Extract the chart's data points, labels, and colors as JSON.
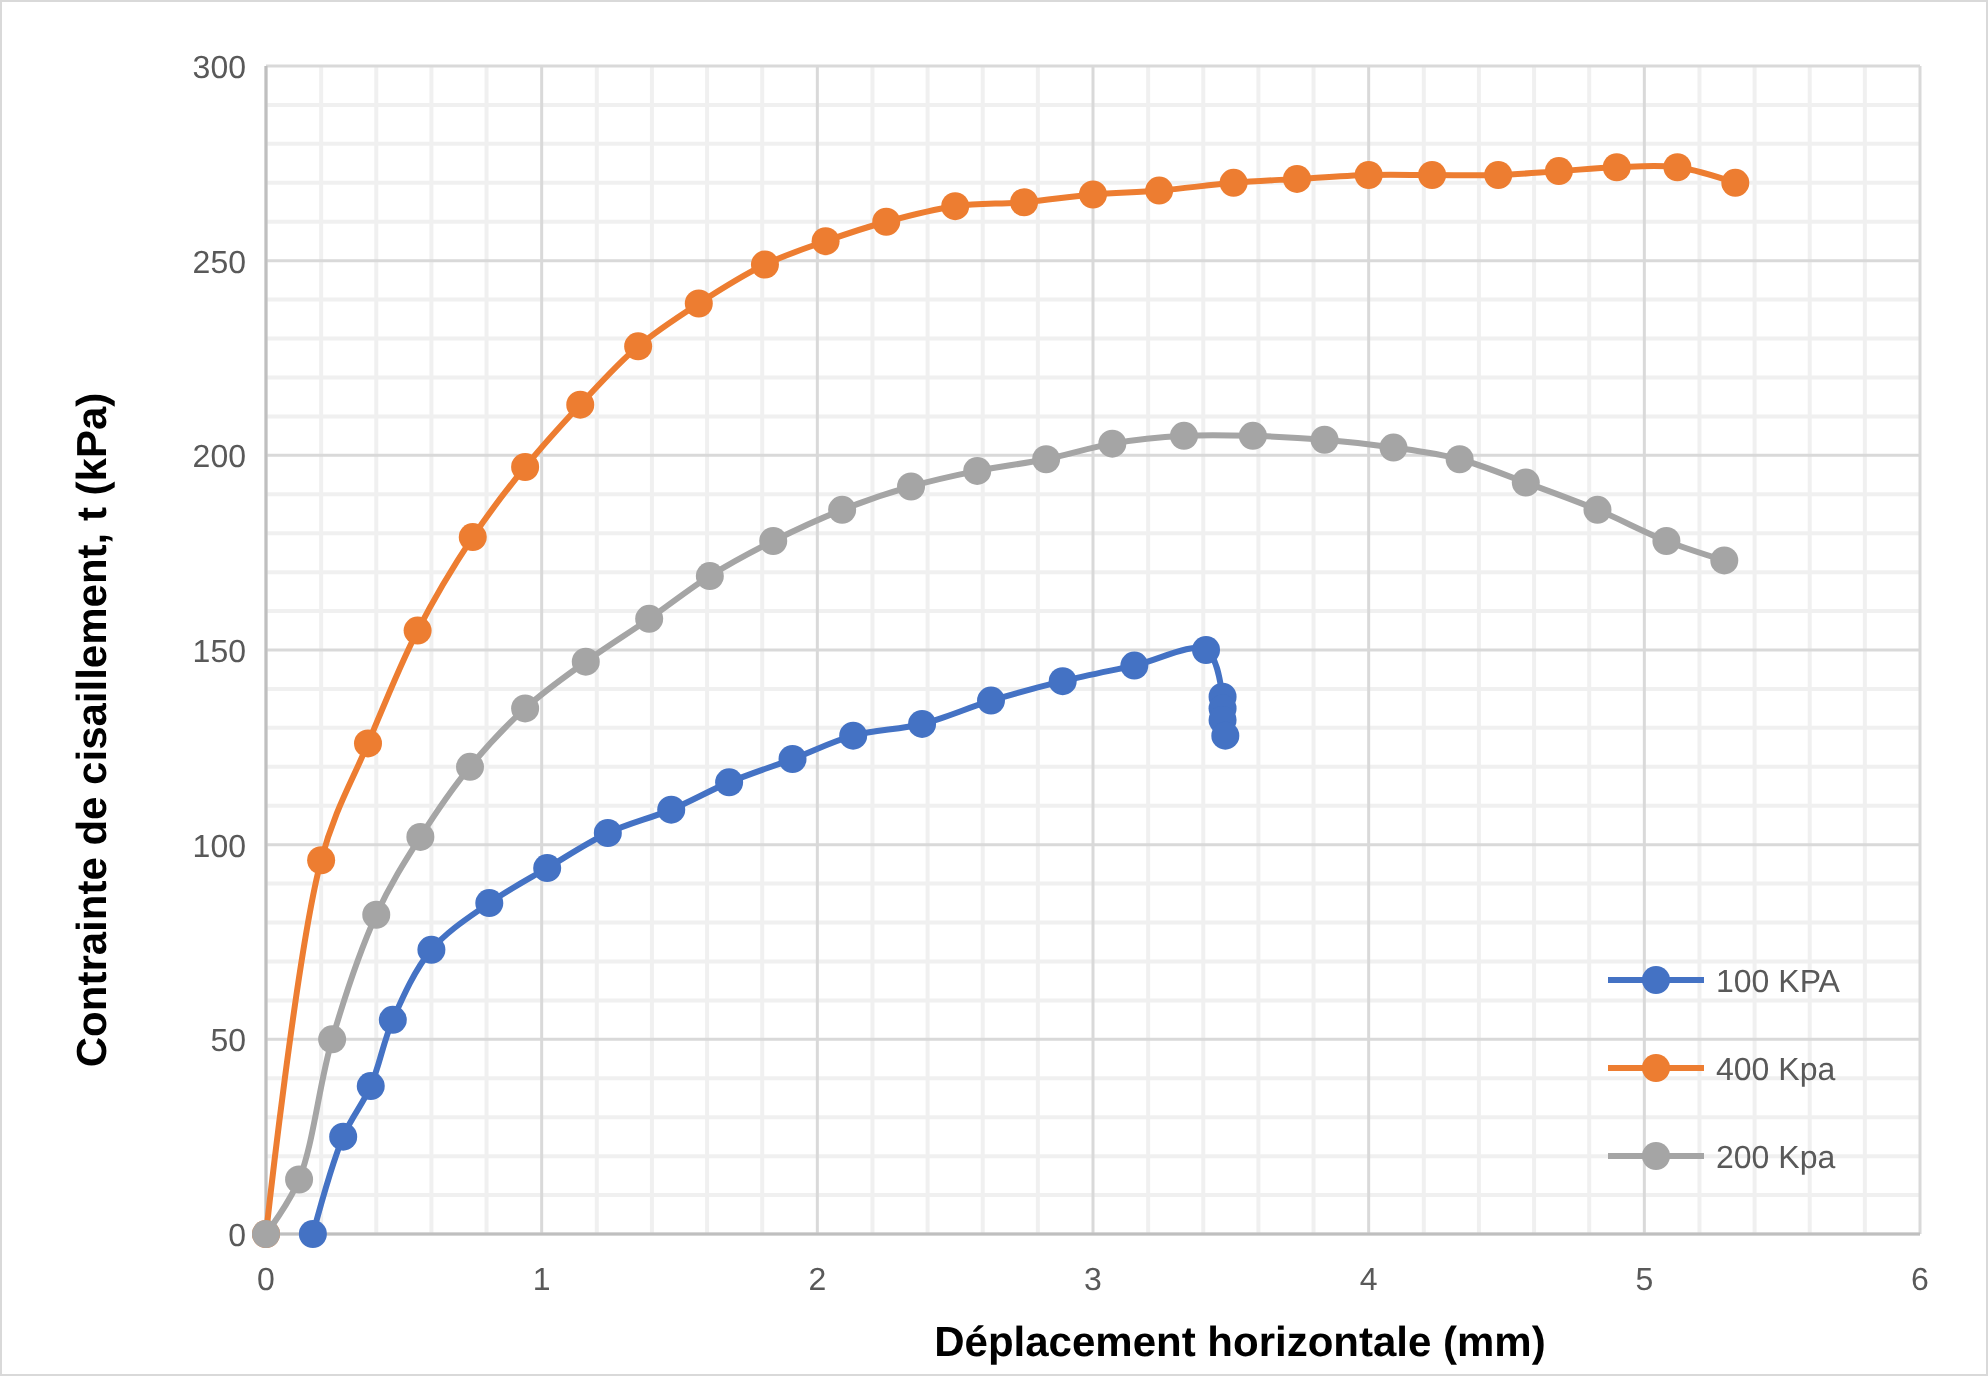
{
  "chart_data": {
    "type": "line",
    "xlabel": "Déplacement horizontale (mm)",
    "ylabel": "Contrainte de cisaillement, t (kPa)",
    "xlim": [
      0,
      6
    ],
    "xticks": [
      0,
      1,
      2,
      3,
      4,
      5,
      6
    ],
    "ylim": [
      0,
      300
    ],
    "yticks": [
      0,
      50,
      100,
      150,
      200,
      250,
      300
    ],
    "grid": true,
    "legend": "bottom right",
    "marker": "circle",
    "line_style": "solid",
    "series": [
      {
        "name": "100 KPA",
        "color": "#4472c4",
        "x": [
          0.17,
          0.28,
          0.38,
          0.46,
          0.6,
          0.81,
          1.02,
          1.24,
          1.47,
          1.68,
          1.91,
          2.13,
          2.38,
          2.63,
          2.89,
          3.15,
          3.41,
          3.47,
          3.47,
          3.47,
          3.48
        ],
        "values": [
          0,
          25,
          38,
          55,
          73,
          85,
          94,
          103,
          109,
          116,
          122,
          128,
          131,
          137,
          142,
          146,
          150,
          138,
          135,
          132,
          128
        ]
      },
      {
        "name": "400 Kpa",
        "color": "#ed7d31",
        "x": [
          0,
          0.2,
          0.37,
          0.55,
          0.75,
          0.94,
          1.14,
          1.35,
          1.57,
          1.81,
          2.03,
          2.25,
          2.5,
          2.75,
          3.0,
          3.24,
          3.51,
          3.74,
          4.0,
          4.23,
          4.47,
          4.69,
          4.9,
          5.12,
          5.33
        ],
        "values": [
          0,
          96,
          126,
          155,
          179,
          197,
          213,
          228,
          239,
          249,
          255,
          260,
          264,
          265,
          267,
          268,
          270,
          271,
          272,
          272,
          272,
          273,
          274,
          274,
          270
        ]
      },
      {
        "name": "200 Kpa",
        "color": "#a5a5a5",
        "x": [
          0,
          0.12,
          0.24,
          0.4,
          0.56,
          0.74,
          0.94,
          1.16,
          1.39,
          1.61,
          1.84,
          2.09,
          2.34,
          2.58,
          2.83,
          3.07,
          3.33,
          3.58,
          3.84,
          4.09,
          4.33,
          4.57,
          4.83,
          5.08,
          5.29
        ],
        "values": [
          0,
          14,
          50,
          82,
          102,
          120,
          135,
          147,
          158,
          169,
          178,
          186,
          192,
          196,
          199,
          203,
          205,
          205,
          204,
          202,
          199,
          193,
          186,
          178,
          173
        ]
      }
    ]
  }
}
